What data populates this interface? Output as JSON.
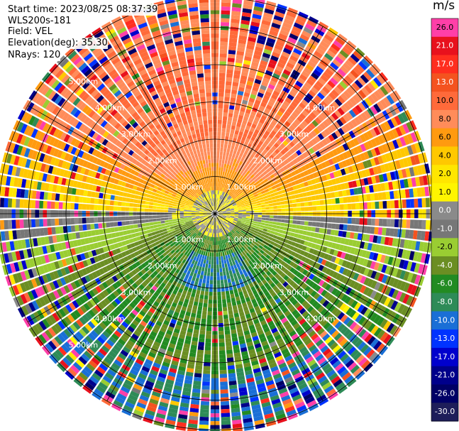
{
  "info": {
    "start_time": "Start time: 2023/08/25 08:37:39",
    "site": "WLS200s-181",
    "field": "Field: VEL",
    "elevation": "Elevation(deg): 35.30",
    "nrays": "NRays: 120"
  },
  "colorbar": {
    "unit": "m/s",
    "levels": [
      "26.0",
      "21.0",
      "17.0",
      "13.0",
      "10.0",
      "8.0",
      "6.0",
      "4.0",
      "2.0",
      "1.0",
      "0.0",
      "-1.0",
      "-2.0",
      "-4.0",
      "-6.0",
      "-8.0",
      "-10.0",
      "-13.0",
      "-17.0",
      "-21.0",
      "-26.0",
      "-30.0"
    ],
    "colors": [
      "#ff3fa8",
      "#e8111d",
      "#ff2e1f",
      "#f4531f",
      "#ff6a3a",
      "#ff8c5a",
      "#ff9a10",
      "#ffc800",
      "#ffe600",
      "#fff500",
      "#8a8a8a",
      "#777777",
      "#9acd32",
      "#6b8e23",
      "#228b22",
      "#2e8b57",
      "#1a6fd6",
      "#0033ff",
      "#0000cd",
      "#00008b",
      "#000066",
      "#1e1e5a"
    ]
  },
  "chart_data": {
    "type": "ppi",
    "title": "",
    "field": "VEL",
    "unit": "m/s",
    "elevation_deg": 35.3,
    "n_rays": 120,
    "range_rings_km": [
      1.0,
      2.0,
      3.0,
      4.0,
      5.0
    ],
    "ring_labels": [
      "1.00km",
      "2.00km",
      "3.00km",
      "4.00km",
      "5.00km"
    ],
    "azimuth_spokes_deg": [
      0,
      30,
      60,
      90,
      120,
      150,
      180,
      210,
      240,
      270,
      300,
      330
    ],
    "max_range_km": 5.8,
    "pattern": {
      "north_sector_velocity": 8.0,
      "east_west_band_velocity": 2.0,
      "near_center_velocity": 0.0,
      "south_sector_velocity": -6.0,
      "south_core_velocity": -10.0,
      "far_range": "noisy"
    }
  }
}
